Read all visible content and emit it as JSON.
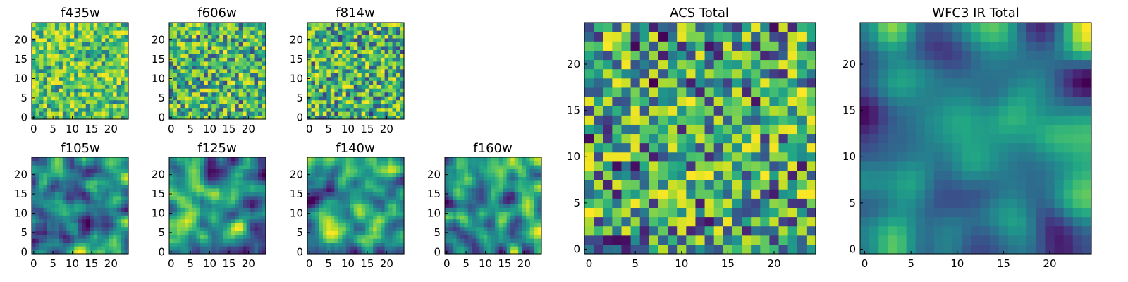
{
  "colormap": "viridis",
  "chart_data": [
    {
      "type": "heatmap",
      "title": "f435w",
      "grid_size": 25,
      "xlim": [
        0,
        24
      ],
      "ylim": [
        0,
        24
      ],
      "xticks": [
        0,
        5,
        10,
        15,
        20
      ],
      "yticks": [
        0,
        5,
        10,
        15,
        20
      ],
      "texture": "noise",
      "smoothness": 0,
      "value_range": [
        0.35,
        1.0
      ],
      "seed": 11
    },
    {
      "type": "heatmap",
      "title": "f606w",
      "grid_size": 25,
      "xlim": [
        0,
        24
      ],
      "ylim": [
        0,
        24
      ],
      "xticks": [
        0,
        5,
        10,
        15,
        20
      ],
      "yticks": [
        0,
        5,
        10,
        15,
        20
      ],
      "texture": "noise",
      "smoothness": 0,
      "value_range": [
        0.2,
        1.0
      ],
      "seed": 23
    },
    {
      "type": "heatmap",
      "title": "f814w",
      "grid_size": 25,
      "xlim": [
        0,
        24
      ],
      "ylim": [
        0,
        24
      ],
      "xticks": [
        0,
        5,
        10,
        15,
        20
      ],
      "yticks": [
        0,
        5,
        10,
        15,
        20
      ],
      "texture": "noise",
      "smoothness": 0,
      "value_range": [
        0.15,
        1.0
      ],
      "seed": 37
    },
    {
      "type": "heatmap",
      "title": "f105w",
      "grid_size": 25,
      "xlim": [
        0,
        24
      ],
      "ylim": [
        0,
        24
      ],
      "xticks": [
        0,
        5,
        10,
        15,
        20
      ],
      "yticks": [
        0,
        5,
        10,
        15,
        20
      ],
      "texture": "smooth",
      "smoothness": 1,
      "value_range": [
        0.0,
        1.0
      ],
      "seed": 41
    },
    {
      "type": "heatmap",
      "title": "f125w",
      "grid_size": 25,
      "xlim": [
        0,
        24
      ],
      "ylim": [
        0,
        24
      ],
      "xticks": [
        0,
        5,
        10,
        15,
        20
      ],
      "yticks": [
        0,
        5,
        10,
        15,
        20
      ],
      "texture": "smooth",
      "smoothness": 1,
      "value_range": [
        0.0,
        1.0
      ],
      "seed": 53
    },
    {
      "type": "heatmap",
      "title": "f140w",
      "grid_size": 25,
      "xlim": [
        0,
        24
      ],
      "ylim": [
        0,
        24
      ],
      "xticks": [
        0,
        5,
        10,
        15,
        20
      ],
      "yticks": [
        0,
        5,
        10,
        15,
        20
      ],
      "texture": "smooth",
      "smoothness": 1,
      "value_range": [
        0.0,
        1.0
      ],
      "seed": 67
    },
    {
      "type": "heatmap",
      "title": "f160w",
      "grid_size": 25,
      "xlim": [
        0,
        24
      ],
      "ylim": [
        0,
        24
      ],
      "xticks": [
        0,
        5,
        10,
        15,
        20
      ],
      "yticks": [
        0,
        5,
        10,
        15,
        20
      ],
      "texture": "smooth",
      "smoothness": 1,
      "value_range": [
        0.0,
        1.0
      ],
      "seed": 79
    },
    {
      "type": "heatmap",
      "title": "ACS Total",
      "grid_size": 25,
      "xlim": [
        0,
        24
      ],
      "ylim": [
        0,
        24
      ],
      "xticks": [
        0,
        5,
        10,
        15,
        20
      ],
      "yticks": [
        0,
        5,
        10,
        15,
        20
      ],
      "texture": "noise",
      "smoothness": 0,
      "value_range": [
        0.0,
        1.0
      ],
      "seed": 97
    },
    {
      "type": "heatmap",
      "title": "WFC3 IR Total",
      "grid_size": 25,
      "xlim": [
        0,
        24
      ],
      "ylim": [
        0,
        24
      ],
      "xticks": [
        0,
        5,
        10,
        15,
        20
      ],
      "yticks": [
        0,
        5,
        10,
        15,
        20
      ],
      "texture": "smooth",
      "smoothness": 2,
      "value_range": [
        0.0,
        1.0
      ],
      "seed": 113
    }
  ]
}
